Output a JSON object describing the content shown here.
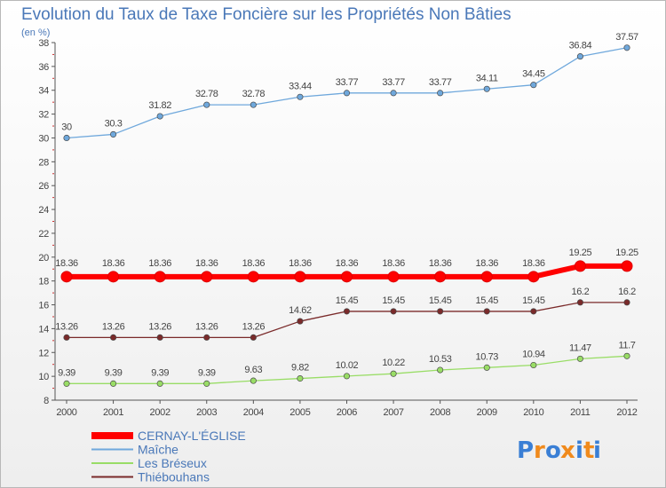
{
  "chart_data": {
    "type": "line",
    "title": "Evolution du Taux de Taxe Foncière sur les Propriétés Non Bâties",
    "subtitle": "(en %)",
    "x": [
      "2000",
      "2001",
      "2002",
      "2003",
      "2004",
      "2005",
      "2006",
      "2007",
      "2008",
      "2009",
      "2010",
      "2011",
      "2012"
    ],
    "ylim": [
      8,
      38
    ],
    "yticks": [
      8,
      10,
      12,
      14,
      16,
      18,
      20,
      22,
      24,
      26,
      28,
      30,
      32,
      34,
      36,
      38
    ],
    "grid": false,
    "legend_position": "bottom-left",
    "series": [
      {
        "name": "CERNAY-L'ÉGLISE",
        "color": "#ff0000",
        "values": [
          18.36,
          18.36,
          18.36,
          18.36,
          18.36,
          18.36,
          18.36,
          18.36,
          18.36,
          18.36,
          18.36,
          19.25,
          19.25
        ],
        "labels": [
          "18.36",
          "18.36",
          "18.36",
          "18.36",
          "18.36",
          "18.36",
          "18.36",
          "18.36",
          "18.36",
          "18.36",
          "18.36",
          "19.25",
          "19.25"
        ]
      },
      {
        "name": "Maîche",
        "color": "#6fa8dc",
        "values": [
          30,
          30.3,
          31.82,
          32.78,
          32.78,
          33.44,
          33.77,
          33.77,
          33.77,
          34.11,
          34.45,
          36.84,
          37.57
        ],
        "labels": [
          "30",
          "30.3",
          "31.82",
          "32.78",
          "32.78",
          "33.44",
          "33.77",
          "33.77",
          "33.77",
          "34.11",
          "34.45",
          "36.84",
          "37.57"
        ]
      },
      {
        "name": "Les Bréseux",
        "color": "#99dd66",
        "values": [
          9.39,
          9.39,
          9.39,
          9.39,
          9.63,
          9.82,
          10.02,
          10.22,
          10.53,
          10.73,
          10.94,
          11.47,
          11.7
        ],
        "labels": [
          "9.39",
          "9.39",
          "9.39",
          "9.39",
          "9.63",
          "9.82",
          "10.02",
          "10.22",
          "10.53",
          "10.73",
          "10.94",
          "11.47",
          "11.7"
        ]
      },
      {
        "name": "Thiébouhans",
        "color": "#7a2a2a",
        "values": [
          13.26,
          13.26,
          13.26,
          13.26,
          13.26,
          14.62,
          15.45,
          15.45,
          15.45,
          15.45,
          15.45,
          16.2,
          16.2
        ],
        "labels": [
          "13.26",
          "13.26",
          "13.26",
          "13.26",
          "13.26",
          "14.62",
          "15.45",
          "15.45",
          "15.45",
          "15.45",
          "15.45",
          "16.2",
          "16.2"
        ]
      }
    ]
  },
  "brand": {
    "logo_letters": [
      "P",
      "r",
      "o",
      "x",
      "i",
      "t",
      "i"
    ],
    "logo_colors": [
      "#3a7fd5",
      "#f08a1c",
      "#3a7fd5",
      "#f08a1c",
      "#3a7fd5",
      "#f08a1c",
      "#3a7fd5"
    ]
  }
}
